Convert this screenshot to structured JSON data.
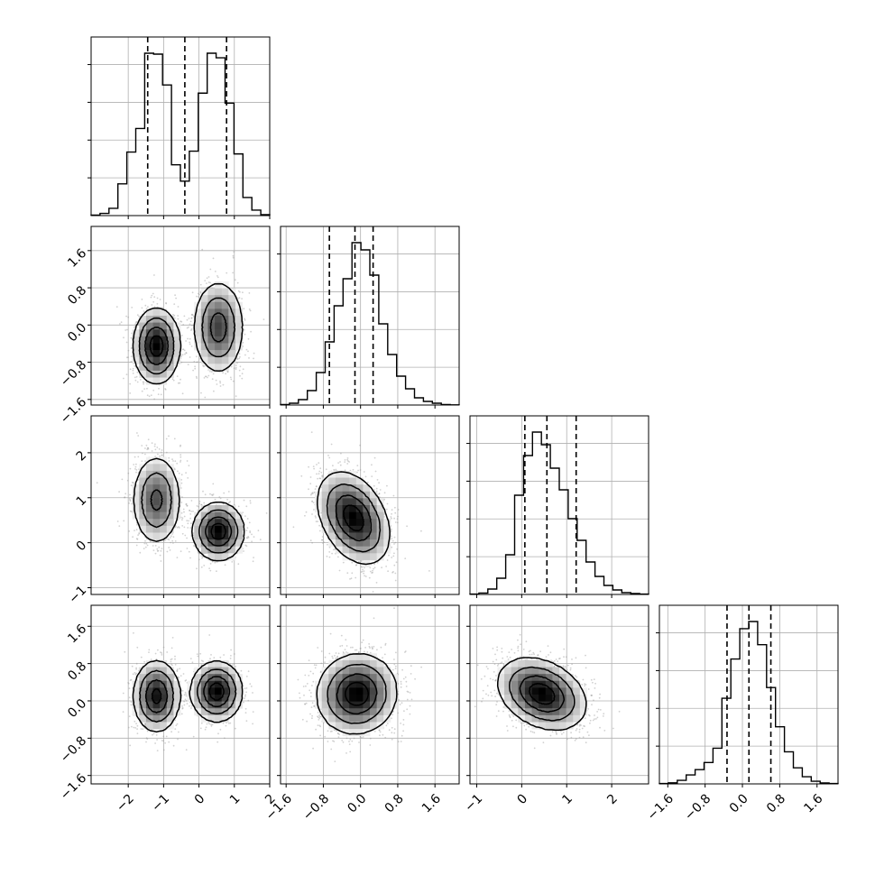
{
  "chart_data": {
    "type": "corner",
    "parameters": 4,
    "grid": true,
    "contour_levels": 4,
    "quantile_lines": [
      0.16,
      0.5,
      0.84
    ],
    "colors": {
      "ink": "#000000",
      "grid": "#b0b0b0",
      "scatter": "#9a9a9a",
      "density_low": "#f2f2f2",
      "density_high": "#000000"
    },
    "ranges": [
      [
        -3.05,
        2.0
      ],
      [
        -1.72,
        2.12
      ],
      [
        -1.15,
        2.82
      ],
      [
        -1.78,
        2.05
      ]
    ],
    "ticks": [
      {
        "values": [
          -2,
          -1,
          0,
          1,
          2
        ],
        "labels": [
          "−2",
          "−1",
          "0",
          "1",
          "2"
        ]
      },
      {
        "values": [
          -1.6,
          -0.8,
          0.0,
          0.8,
          1.6
        ],
        "labels": [
          "−1.6",
          "−0.8",
          "0.0",
          "0.8",
          "1.6"
        ]
      },
      {
        "values": [
          -1,
          0,
          1,
          2
        ],
        "labels": [
          "−1",
          "0",
          "1",
          "2"
        ]
      },
      {
        "values": [
          -1.6,
          -0.8,
          0.0,
          0.8,
          1.6
        ],
        "labels": [
          "−1.6",
          "−0.8",
          "0.0",
          "0.8",
          "1.6"
        ]
      }
    ],
    "quantiles": [
      [
        -1.45,
        -0.4,
        0.78
      ],
      [
        -0.67,
        -0.12,
        0.27
      ],
      [
        0.07,
        0.56,
        1.21
      ],
      [
        -0.33,
        0.14,
        0.61
      ]
    ],
    "histograms": [
      {
        "bin_start": -3.05,
        "bin_width": 0.2525,
        "counts": [
          0.3,
          1.2,
          4.0,
          17.5,
          35.0,
          48.0,
          89.5,
          89.0,
          72.0,
          28.0,
          19.0,
          35.5,
          67.5,
          89.5,
          87.0,
          62.0,
          34.0,
          10.0,
          3.0,
          0.5
        ]
      },
      {
        "bin_start": -1.72,
        "bin_width": 0.192,
        "counts": [
          0.3,
          1.0,
          3.0,
          8.0,
          18.0,
          35.0,
          55.0,
          70.0,
          90.0,
          86.0,
          72.0,
          45.0,
          28.0,
          16.0,
          9.0,
          4.0,
          2.0,
          1.0,
          0.3,
          0.1
        ]
      },
      {
        "bin_start": -1.15,
        "bin_width": 0.1985,
        "counts": [
          0.2,
          0.8,
          3.0,
          9.0,
          22.0,
          55.0,
          77.0,
          90.0,
          83.0,
          70.0,
          58.0,
          42.0,
          30.0,
          18.0,
          10.0,
          5.0,
          2.5,
          1.0,
          0.5,
          0.2
        ]
      },
      {
        "bin_start": -1.78,
        "bin_width": 0.1915,
        "counts": [
          0.2,
          0.6,
          2.0,
          5.0,
          8.0,
          12.0,
          20.0,
          48.0,
          70.0,
          87.0,
          91.0,
          78.0,
          54.0,
          32.0,
          18.0,
          9.0,
          4.0,
          1.5,
          0.5,
          0.2
        ]
      }
    ],
    "pairs": [
      {
        "row": 1,
        "col": 0,
        "modes": [
          {
            "mean": [
              -1.2,
              -0.45
            ],
            "sd": [
              0.33,
              0.4
            ],
            "rho": 0.0,
            "w": 0.5
          },
          {
            "mean": [
              0.55,
              -0.05
            ],
            "sd": [
              0.36,
              0.5
            ],
            "rho": 0.0,
            "w": 0.5
          }
        ]
      },
      {
        "row": 2,
        "col": 0,
        "modes": [
          {
            "mean": [
              -1.2,
              0.95
            ],
            "sd": [
              0.35,
              0.5
            ],
            "rho": 0.0,
            "w": 0.5
          },
          {
            "mean": [
              0.55,
              0.25
            ],
            "sd": [
              0.36,
              0.32
            ],
            "rho": 0.0,
            "w": 0.5
          }
        ]
      },
      {
        "row": 2,
        "col": 1,
        "modes": [
          {
            "mean": [
              -0.15,
              0.55
            ],
            "sd": [
              0.38,
              0.5
            ],
            "rho": -0.35,
            "w": 1.0
          }
        ]
      },
      {
        "row": 3,
        "col": 0,
        "modes": [
          {
            "mean": [
              -1.2,
              0.1
            ],
            "sd": [
              0.33,
              0.38
            ],
            "rho": 0.0,
            "w": 0.5
          },
          {
            "mean": [
              0.5,
              0.2
            ],
            "sd": [
              0.36,
              0.32
            ],
            "rho": 0.0,
            "w": 0.5
          }
        ]
      },
      {
        "row": 3,
        "col": 1,
        "modes": [
          {
            "mean": [
              -0.08,
              0.15
            ],
            "sd": [
              0.42,
              0.42
            ],
            "rho": 0.05,
            "w": 1.0
          }
        ]
      },
      {
        "row": 3,
        "col": 2,
        "modes": [
          {
            "mean": [
              0.45,
              0.15
            ],
            "sd": [
              0.48,
              0.38
            ],
            "rho": -0.3,
            "w": 1.0
          }
        ]
      }
    ]
  }
}
